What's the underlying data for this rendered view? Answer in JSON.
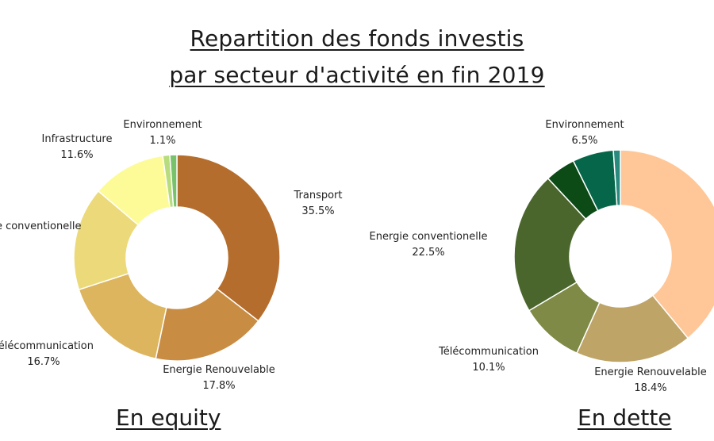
{
  "header": {
    "title_line1": "Repartition des fonds investis",
    "title_line2": "par secteur d'activité en fin 2019"
  },
  "chart_data": [
    {
      "type": "pie",
      "variant": "donut",
      "caption": "En equity",
      "slices": [
        {
          "label": "Transport",
          "value": 35.5,
          "display": "35.5%",
          "color": "#B46D2C"
        },
        {
          "label": "Energie Renouvelable",
          "value": 17.8,
          "display": "17.8%",
          "color": "#C98C43"
        },
        {
          "label": "Télécommunication",
          "value": 16.7,
          "display": "16.7%",
          "color": "#DDB55E"
        },
        {
          "label": "Energie conventionelle",
          "value": 16.2,
          "display": "",
          "color": "#ECDA7A"
        },
        {
          "label": "Infrastructure",
          "value": 11.6,
          "display": "11.6%",
          "color": "#FDFB98"
        },
        {
          "label": "",
          "value": 1.1,
          "display": "",
          "color": "#B7DC7E"
        },
        {
          "label": "Environnement",
          "value": 1.1,
          "display": "1.1%",
          "color": "#79C26C"
        }
      ]
    },
    {
      "type": "pie",
      "variant": "donut",
      "caption": "En dette",
      "slices": [
        {
          "label": "",
          "value": 40.6,
          "display": "",
          "color": "#FFC797"
        },
        {
          "label": "Energie Renouvelable",
          "value": 18.4,
          "display": "18.4%",
          "color": "#BFA468"
        },
        {
          "label": "Télécommunication",
          "value": 10.1,
          "display": "10.1%",
          "color": "#7E8A45"
        },
        {
          "label": "Energie conventionelle",
          "value": 22.5,
          "display": "22.5%",
          "color": "#4A662C"
        },
        {
          "label": "",
          "value": 4.8,
          "display": "",
          "color": "#0C4A16"
        },
        {
          "label": "Environnement",
          "value": 6.5,
          "display": "6.5%",
          "color": "#066649"
        },
        {
          "label": "",
          "value": 1.1,
          "display": "",
          "color": "#2A8A7E"
        }
      ]
    }
  ]
}
